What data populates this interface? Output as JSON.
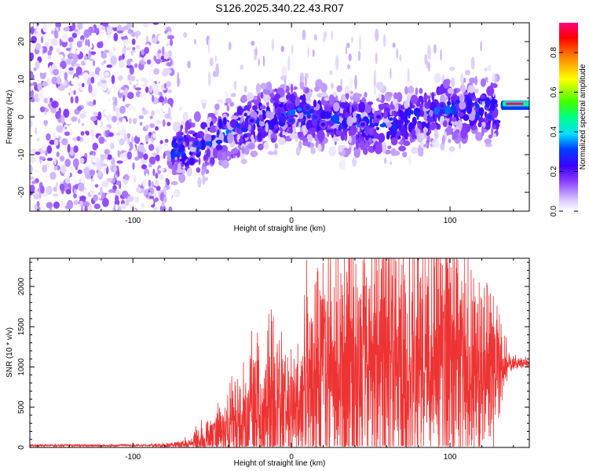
{
  "title": "S126.2025.340.22.43.R07",
  "colors": {
    "snr_line": "#ee3333",
    "spectrogram_low": "#d9c8ff",
    "spectrogram_mid": "#6a00ff",
    "spectrogram_high": "#ff0040"
  },
  "chart_data": [
    {
      "type": "heatmap",
      "title": "S126.2025.340.22.43.R07",
      "xlabel": "Height of straight line (km)",
      "ylabel": "Frequency (Hz)",
      "xlim": [
        -165,
        150
      ],
      "ylim": [
        -25,
        25
      ],
      "xticks": [
        -100,
        0,
        100
      ],
      "yticks": [
        -20,
        -10,
        0,
        10,
        20
      ],
      "colorbar": {
        "label": "Normalized spectral amplitude",
        "range": [
          0,
          0.95
        ],
        "ticks": [
          0,
          0.2,
          0.4,
          0.6,
          0.8
        ],
        "tick_labels": [
          "0.0",
          "0.2",
          "0.4",
          "0.6",
          "0.8"
        ],
        "colormap": "purple-blue-cyan-green-yellow-red-magenta"
      },
      "regions": [
        {
          "name": "noise",
          "x": [
            -165,
            -75
          ],
          "freq_range": [
            -25,
            25
          ],
          "amplitude": [
            0.0,
            0.1
          ]
        },
        {
          "name": "signal-band",
          "x": [
            -75,
            130
          ],
          "freq_range": [
            -15,
            10
          ],
          "amplitude": [
            0.05,
            0.35
          ]
        },
        {
          "name": "steady-tone",
          "x": [
            133,
            150
          ],
          "freq_center": 3.5,
          "amplitude": [
            0.6,
            0.95
          ]
        }
      ],
      "hotspots": [
        {
          "x": -70,
          "freq": -6,
          "amp": 0.3
        },
        {
          "x": -60,
          "freq": -7,
          "amp": 0.3
        },
        {
          "x": -25,
          "freq": -1,
          "amp": 0.25
        },
        {
          "x": 0,
          "freq": -1,
          "amp": 0.3
        },
        {
          "x": 5,
          "freq": 2,
          "amp": 0.35
        },
        {
          "x": 10,
          "freq": 2.5,
          "amp": 0.3
        },
        {
          "x": 15,
          "freq": 0,
          "amp": 0.3
        },
        {
          "x": 20,
          "freq": -2,
          "amp": 0.25
        },
        {
          "x": 45,
          "freq": -2,
          "amp": 0.25
        },
        {
          "x": 55,
          "freq": 0,
          "amp": 0.25
        },
        {
          "x": 95,
          "freq": 3,
          "amp": 0.3
        },
        {
          "x": 125,
          "freq": 0,
          "amp": 0.3
        }
      ]
    },
    {
      "type": "line",
      "xlabel": "Height of straight line (km)",
      "ylabel": "SNR (10 * v/v)",
      "xlim": [
        -165,
        150
      ],
      "ylim": [
        0,
        2350
      ],
      "xticks": [
        -100,
        0,
        100
      ],
      "yticks": [
        0,
        500,
        1000,
        1500,
        2000
      ],
      "series": [
        {
          "name": "SNR",
          "envelope": {
            "x": [
              -165,
              -90,
              -75,
              -65,
              -55,
              -45,
              -35,
              -25,
              -15,
              -5,
              5,
              10,
              20,
              30,
              45,
              60,
              75,
              90,
              105,
              115,
              125,
              132,
              138,
              150
            ],
            "base": [
              25,
              25,
              30,
              40,
              80,
              150,
              250,
              350,
              420,
              450,
              500,
              750,
              900,
              950,
              950,
              1000,
              1000,
              980,
              980,
              1000,
              950,
              1000,
              1050,
              1050
            ],
            "amp": [
              10,
              10,
              20,
              60,
              130,
              250,
              380,
              500,
              700,
              600,
              500,
              800,
              950,
              1100,
              1100,
              1200,
              1200,
              1100,
              1050,
              900,
              700,
              350,
              60,
              40
            ]
          }
        }
      ]
    }
  ]
}
